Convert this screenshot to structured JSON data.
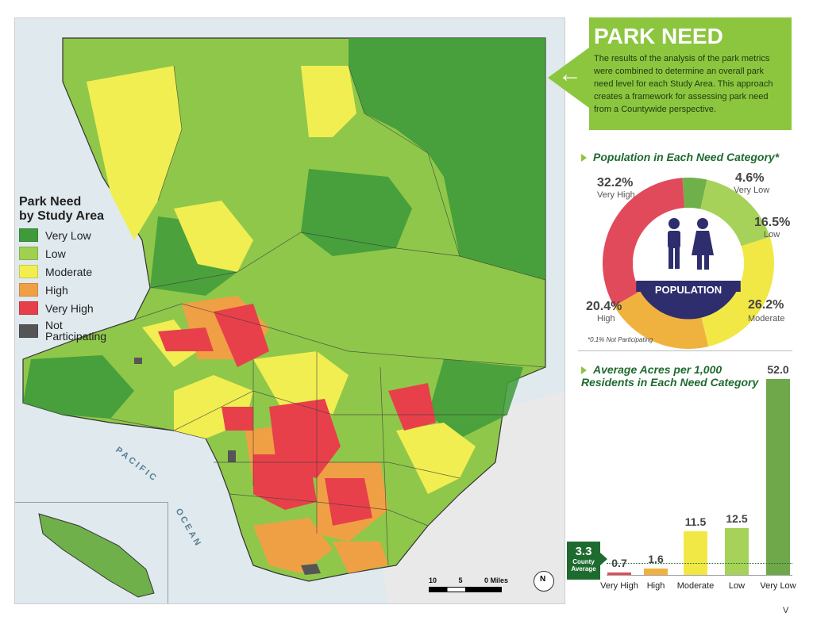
{
  "legend": {
    "title_line1": "Park Need",
    "title_line2": "by Study Area",
    "items": [
      {
        "label": "Very Low",
        "color": "#3f9b3a"
      },
      {
        "label": "Low",
        "color": "#9fd04f"
      },
      {
        "label": "Moderate",
        "color": "#f1ee52"
      },
      {
        "label": "High",
        "color": "#f0a044"
      },
      {
        "label": "Very High",
        "color": "#e8404a"
      },
      {
        "label": "Not Participating",
        "color": "#555555"
      }
    ]
  },
  "map_labels": {
    "pacific": "PACIFIC",
    "ocean": "OCEAN"
  },
  "scalebar": {
    "n10": "10",
    "n5": "5",
    "n0": "0 Miles"
  },
  "north_arrow": "N",
  "callout": {
    "title": "PARK NEED",
    "body": "The results of the analysis of the park metrics were combined to determine an overall park need level for each Study Area. This approach creates a framework for assessing park need from a Countywide perspective."
  },
  "population_chart": {
    "heading": "Population in Each Need Category*",
    "center_label": "POPULATION",
    "footnote": "*0.1% Not Participating"
  },
  "acres_chart": {
    "heading_line1": "Average Acres per 1,000",
    "heading_line2": "Residents in Each Need Category",
    "county_average_value": "3.3",
    "county_average_label1": "County",
    "county_average_label2": "Average"
  },
  "page_number": "V",
  "chart_data": [
    {
      "type": "pie",
      "title": "Population in Each Need Category*",
      "slices": [
        {
          "label": "Very High",
          "value": 32.2,
          "display": "32.2%",
          "color": "#e04a5b"
        },
        {
          "label": "Very Low",
          "value": 4.6,
          "display": "4.6%",
          "color": "#6fb04b"
        },
        {
          "label": "Low",
          "value": 16.5,
          "display": "16.5%",
          "color": "#a6d25a"
        },
        {
          "label": "Moderate",
          "value": 26.2,
          "display": "26.2%",
          "color": "#f2e845"
        },
        {
          "label": "High",
          "value": 20.4,
          "display": "20.4%",
          "color": "#f0b23e"
        }
      ]
    },
    {
      "type": "bar",
      "title": "Average Acres per 1,000 Residents in Each Need Category",
      "categories": [
        "Very High",
        "High",
        "Moderate",
        "Low",
        "Very Low"
      ],
      "values": [
        0.7,
        1.6,
        11.5,
        12.5,
        52.0
      ],
      "labels": [
        "0.7",
        "1.6",
        "11.5",
        "12.5",
        "52.0"
      ],
      "colors": [
        "#e04a5b",
        "#f0b23e",
        "#f2e845",
        "#a6d25a",
        "#6fa84a"
      ],
      "ylim": [
        0,
        52
      ],
      "reference_line": 3.3
    }
  ]
}
